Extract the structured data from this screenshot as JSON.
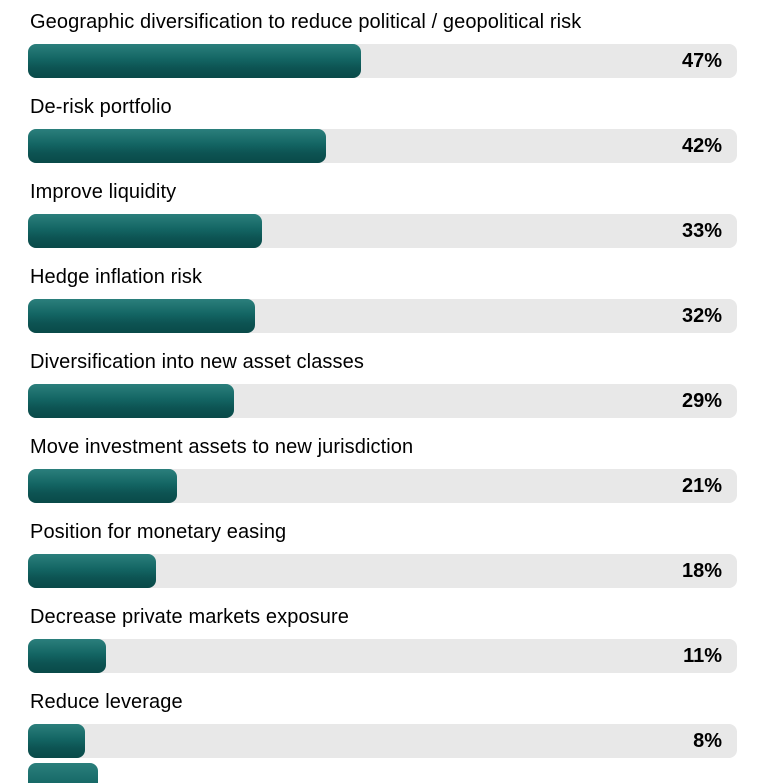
{
  "chart_data": {
    "type": "bar",
    "orientation": "horizontal",
    "title": "",
    "xlabel": "",
    "ylabel": "",
    "xlim": [
      0,
      100
    ],
    "grid": false,
    "legend": false,
    "value_suffix": "%",
    "categories": [
      "Geographic diversification to reduce political / geopolitical risk",
      "De-risk portfolio",
      "Improve liquidity",
      "Hedge inflation risk",
      "Diversification into new asset classes",
      "Move investment assets to new jurisdiction",
      "Position for monetary easing",
      "Decrease private markets exposure",
      "Reduce leverage"
    ],
    "values": [
      47,
      42,
      33,
      32,
      29,
      21,
      18,
      11,
      8
    ],
    "value_labels": [
      "47%",
      "42%",
      "33%",
      "32%",
      "29%",
      "21%",
      "18%",
      "11%",
      "8%"
    ],
    "colors": {
      "bar_gradient_top": "#2b7f7c",
      "bar_gradient_bottom": "#094a49",
      "track": "#e8e8e8",
      "text": "#000000"
    },
    "layout_hints": {
      "value_label_position": "inside-right of track",
      "category_label_position": "above bar",
      "cropped_partial_bar_visible_at_bottom": true
    }
  }
}
